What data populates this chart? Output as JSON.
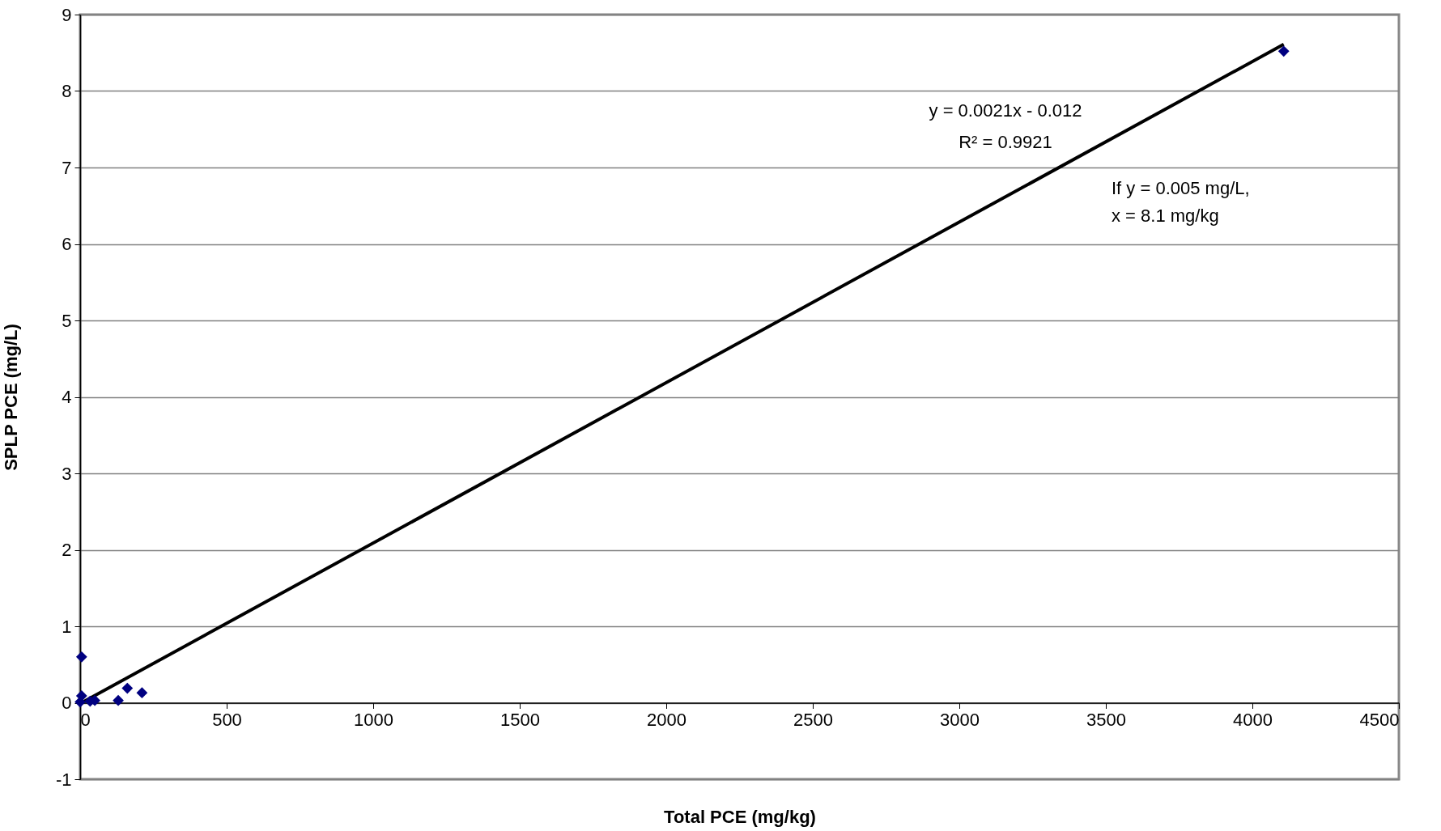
{
  "chart_data": {
    "type": "scatter",
    "xlabel": "Total PCE (mg/kg)",
    "ylabel": "SPLP PCE (mg/L)",
    "xlim": [
      0,
      4500
    ],
    "xticks": [
      0,
      500,
      1000,
      1500,
      2000,
      2500,
      3000,
      3500,
      4000,
      4500
    ],
    "ylim": [
      -1,
      9
    ],
    "yticks": [
      -1,
      0,
      1,
      2,
      3,
      4,
      5,
      6,
      7,
      8,
      9
    ],
    "grid": "y",
    "series": [
      {
        "marker": "diamond",
        "color": "#000080",
        "x": [
          5,
          5,
          0,
          34,
          50,
          130,
          161,
          211,
          4107
        ],
        "values": [
          0.6,
          0.09,
          0.01,
          0.02,
          0.03,
          0.03,
          0.19,
          0.13,
          8.52
        ]
      },
      {
        "type": "line",
        "color": "#000000",
        "x": [
          0,
          4107
        ],
        "values": [
          -0.01,
          8.61
        ]
      }
    ],
    "annotations": [
      "y = 0.0021x - 0.012",
      "R² = 0.9921",
      "If y = 0.005 mg/L,",
      "x = 8.1 mg/kg"
    ]
  }
}
